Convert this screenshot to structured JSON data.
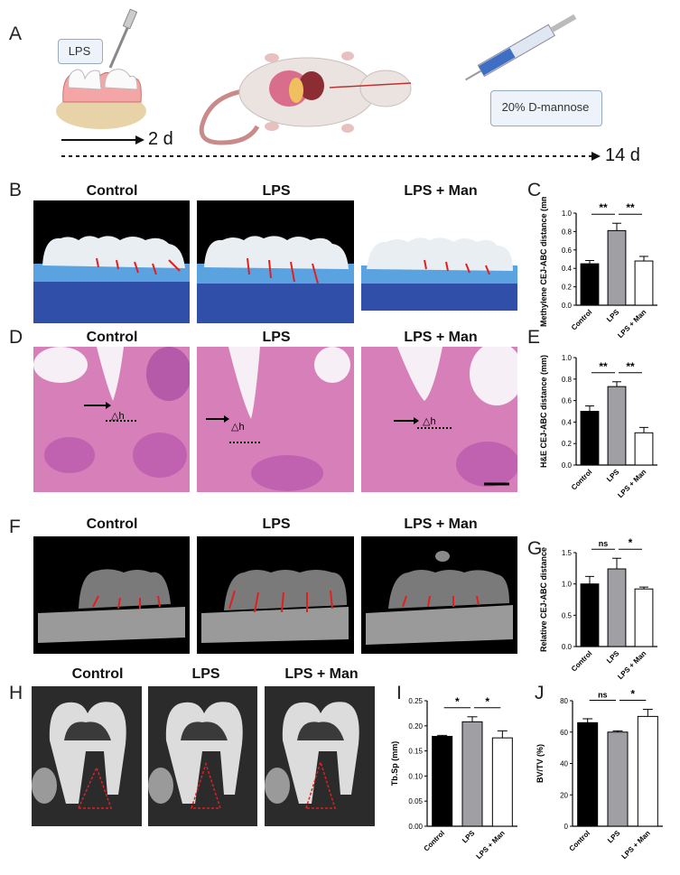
{
  "panel_labels": {
    "A": "A",
    "B": "B",
    "C": "C",
    "D": "D",
    "E": "E",
    "F": "F",
    "G": "G",
    "H": "H",
    "I": "I",
    "J": "J"
  },
  "schematic": {
    "lps_label": "LPS",
    "mannose_label": "20% D-mannose",
    "timeline_2d": "2 d",
    "timeline_14d": "14 d"
  },
  "group_titles": [
    "Control",
    "LPS",
    "LPS + Man"
  ],
  "image_annotations": {
    "delta_h": "△h"
  },
  "colors": {
    "control": "#000000",
    "lps": "#a0a0a4",
    "man": "#ffffff",
    "sig": "#000000"
  },
  "chart_data": [
    {
      "id": "C",
      "type": "bar",
      "categories": [
        "Control",
        "LPS",
        "LPS + Man"
      ],
      "values": [
        0.45,
        0.81,
        0.48
      ],
      "errors": [
        0.035,
        0.08,
        0.05
      ],
      "ylabel": "Methylene CEJ-ABC distance (mm)",
      "ylim": [
        0,
        1.0
      ],
      "yticks": [
        "0.0",
        "0.2",
        "0.4",
        "0.6",
        "0.8",
        "1.0"
      ],
      "significance": [
        "**",
        "**"
      ]
    },
    {
      "id": "E",
      "type": "bar",
      "categories": [
        "Control",
        "LPS",
        "LPS + Man"
      ],
      "values": [
        0.5,
        0.73,
        0.3
      ],
      "errors": [
        0.05,
        0.045,
        0.05
      ],
      "ylabel": "H&E CEJ-ABC distance (mm)",
      "ylim": [
        0,
        1.0
      ],
      "yticks": [
        "0.0",
        "0.2",
        "0.4",
        "0.6",
        "0.8",
        "1.0"
      ],
      "significance": [
        "**",
        "**"
      ]
    },
    {
      "id": "G",
      "type": "bar",
      "categories": [
        "Control",
        "LPS",
        "LPS + Man"
      ],
      "values": [
        1.0,
        1.24,
        0.92
      ],
      "errors": [
        0.12,
        0.17,
        0.03
      ],
      "ylabel": "Relative CEJ-ABC distance",
      "ylim": [
        0,
        1.5
      ],
      "yticks": [
        "0.0",
        "0.5",
        "1.0",
        "1.5"
      ],
      "significance": [
        "ns",
        "*"
      ]
    },
    {
      "id": "I",
      "type": "bar",
      "categories": [
        "Control",
        "LPS",
        "LPS + Man"
      ],
      "values": [
        0.179,
        0.208,
        0.176
      ],
      "errors": [
        0.002,
        0.01,
        0.014
      ],
      "ylabel": "Tb.Sp (mm)",
      "ylim": [
        0,
        0.25
      ],
      "yticks": [
        "0.00",
        "0.05",
        "0.10",
        "0.15",
        "0.20",
        "0.25"
      ],
      "significance": [
        "*",
        "*"
      ]
    },
    {
      "id": "J",
      "type": "bar",
      "categories": [
        "Control",
        "LPS",
        "LPS + Man"
      ],
      "values": [
        66,
        60,
        70
      ],
      "errors": [
        2.5,
        0.8,
        4.5
      ],
      "ylabel": "BV/TV (%)",
      "ylim": [
        0,
        80
      ],
      "yticks": [
        "0",
        "20",
        "40",
        "60",
        "80"
      ],
      "significance": [
        "ns",
        "*"
      ]
    }
  ]
}
